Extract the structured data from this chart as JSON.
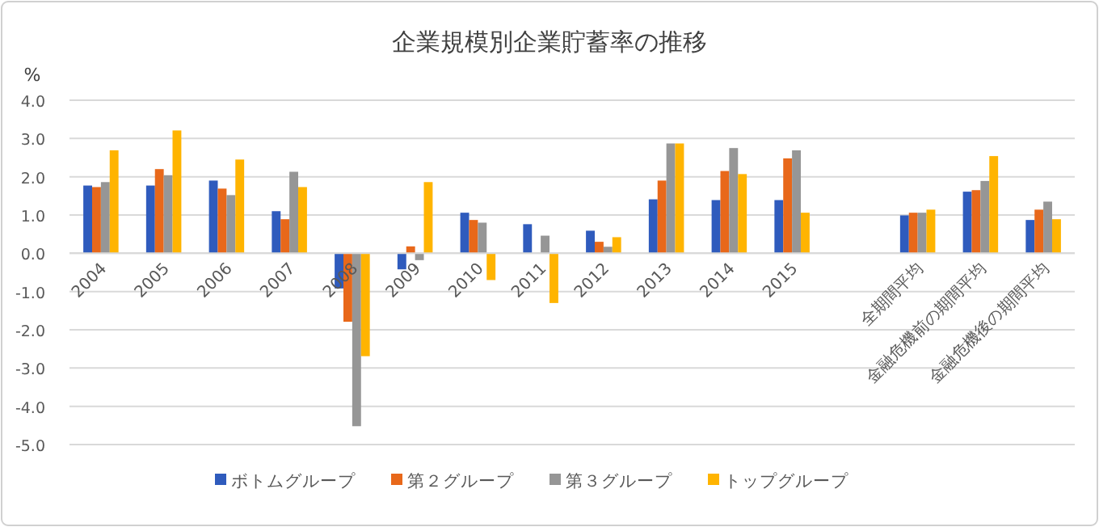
{
  "chart_data": {
    "type": "bar",
    "title": "企業規模別企業貯蓄率の推移",
    "ylabel": "%",
    "categories": [
      "2004",
      "2005",
      "2006",
      "2007",
      "2008",
      "2009",
      "2010",
      "2011",
      "2012",
      "2013",
      "2014",
      "2015",
      null,
      "全期間平均",
      "金融危機前の期間平均",
      "金融危機後の期間平均"
    ],
    "series": [
      {
        "name": "ボトムグループ",
        "color": "#2f5bbd",
        "values": [
          1.77,
          1.77,
          1.9,
          1.1,
          -0.92,
          -0.42,
          1.06,
          0.76,
          0.59,
          1.41,
          1.39,
          1.39,
          null,
          0.99,
          1.61,
          0.87
        ]
      },
      {
        "name": "第２グループ",
        "color": "#e8681a",
        "values": [
          1.73,
          2.2,
          1.69,
          0.89,
          -1.79,
          0.18,
          0.87,
          null,
          0.3,
          1.9,
          2.15,
          2.48,
          null,
          1.06,
          1.65,
          1.14
        ]
      },
      {
        "name": "第３グループ",
        "color": "#969696",
        "values": [
          1.86,
          2.04,
          1.52,
          2.13,
          -4.52,
          -0.18,
          0.8,
          0.46,
          0.17,
          2.87,
          2.75,
          2.69,
          null,
          1.06,
          1.89,
          1.35
        ]
      },
      {
        "name": "トップグループ",
        "color": "#ffb400",
        "values": [
          2.69,
          3.21,
          2.45,
          1.73,
          -2.69,
          1.86,
          -0.7,
          -1.3,
          0.42,
          2.87,
          2.07,
          1.06,
          null,
          1.14,
          2.54,
          0.89
        ]
      }
    ],
    "ylim": [
      -5,
      4
    ],
    "yticks": [
      {
        "value": -5,
        "label": "-5.0"
      },
      {
        "value": -4,
        "label": "-4.0"
      },
      {
        "value": -3,
        "label": "-3.0"
      },
      {
        "value": -2,
        "label": "-2.0"
      },
      {
        "value": -1,
        "label": "-1.0"
      },
      {
        "value": 0,
        "label": "0.0"
      },
      {
        "value": 1,
        "label": "1.0"
      },
      {
        "value": 2,
        "label": "2.0"
      },
      {
        "value": 3,
        "label": "3.0"
      },
      {
        "value": 4,
        "label": "4.0"
      }
    ],
    "grid": "y",
    "legend": "bottom"
  }
}
